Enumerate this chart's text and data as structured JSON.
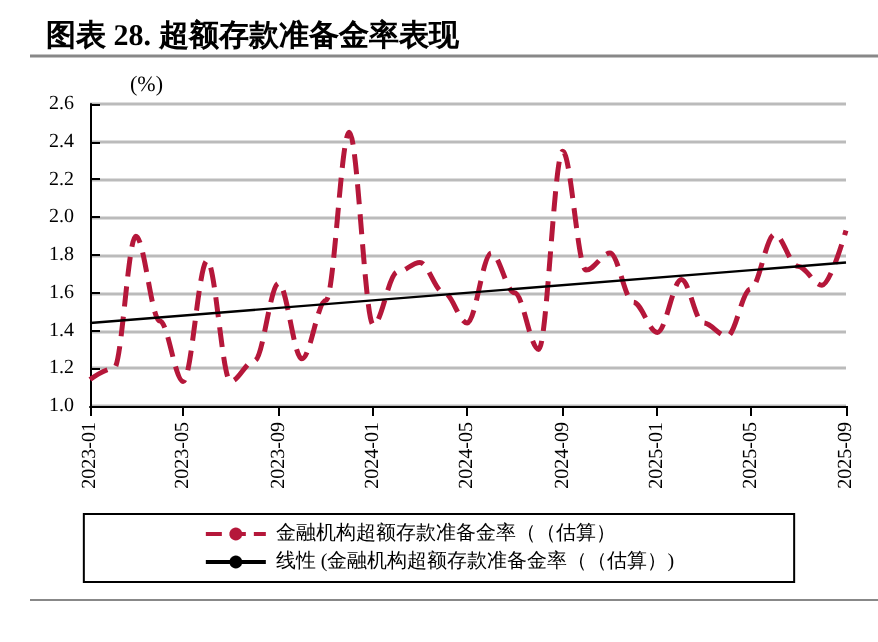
{
  "chart_data": {
    "type": "line",
    "title": "图表 28. 超额存款准备金率表现",
    "ylabel": "(%)",
    "x": [
      "2023-01",
      "2023-02",
      "2023-03",
      "2023-04",
      "2023-05",
      "2023-06",
      "2023-07",
      "2023-08",
      "2023-09",
      "2023-10",
      "2023-11",
      "2023-12",
      "2024-01",
      "2024-02",
      "2024-03",
      "2024-04",
      "2024-05",
      "2024-06",
      "2024-07",
      "2024-08",
      "2024-09",
      "2024-10",
      "2024-11",
      "2024-12",
      "2025-01",
      "2025-02",
      "2025-03",
      "2025-04",
      "2025-05",
      "2025-06",
      "2025-07",
      "2025-08",
      "2025-09"
    ],
    "series": [
      {
        "name": "金融机构超额存款准备金率（（估算）",
        "color": "#b5173a",
        "line_style": "dashed",
        "values": [
          1.14,
          1.2,
          1.9,
          1.45,
          1.13,
          1.77,
          1.13,
          1.24,
          1.65,
          1.25,
          1.56,
          2.45,
          1.43,
          1.71,
          1.76,
          1.6,
          1.44,
          1.81,
          1.6,
          1.3,
          2.35,
          1.72,
          1.81,
          1.55,
          1.39,
          1.67,
          1.44,
          1.37,
          1.62,
          1.91,
          1.74,
          1.64,
          1.93
        ]
      },
      {
        "name": "线性 (金融机构超额存款准备金率（（估算）)",
        "color": "#000000",
        "line_style": "solid",
        "x": [
          "2023-01",
          "2025-09"
        ],
        "values": [
          1.44,
          1.76
        ]
      }
    ],
    "xlim": [
      "2023-01",
      "2025-09"
    ],
    "xticks": [
      "2023-01",
      "2023-05",
      "2023-09",
      "2024-01",
      "2024-05",
      "2024-09",
      "2025-01",
      "2025-05",
      "2025-09"
    ],
    "ylim": [
      1.0,
      2.6
    ],
    "yticks": [
      {
        "value": 1.0,
        "label": "1.0"
      },
      {
        "value": 1.2,
        "label": "1.2"
      },
      {
        "value": 1.4,
        "label": "1.4"
      },
      {
        "value": 1.6,
        "label": "1.6"
      },
      {
        "value": 1.8,
        "label": "1.8"
      },
      {
        "value": 2.0,
        "label": "2.0"
      },
      {
        "value": 2.2,
        "label": "2.2"
      },
      {
        "value": 2.4,
        "label": "2.4"
      },
      {
        "value": 2.6,
        "label": "2.6"
      }
    ],
    "grid": "y",
    "legend": "bottom",
    "marker": "none"
  }
}
